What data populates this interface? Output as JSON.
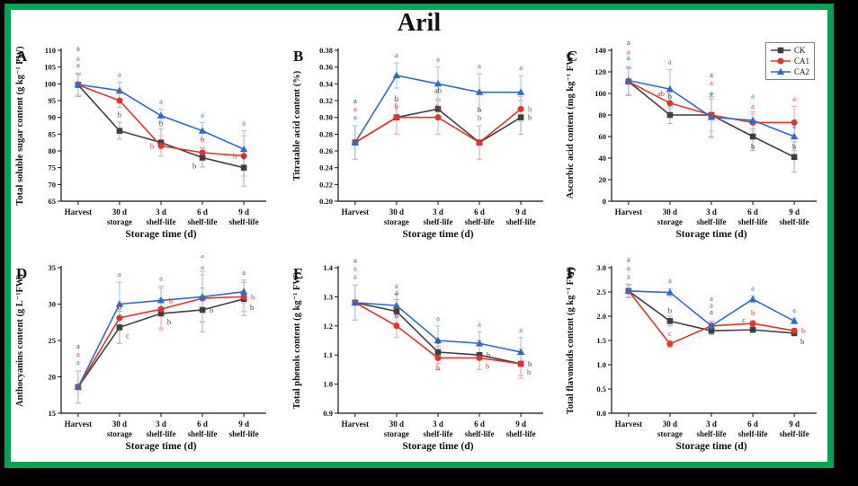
{
  "figure": {
    "title": "Aril",
    "frame_color": "#00a551",
    "background": "#ffffff",
    "outer_background": "#000000"
  },
  "legend": {
    "position": "top-right",
    "items": [
      {
        "label": "CK",
        "marker": "square",
        "color": "#3f3f3f"
      },
      {
        "label": "CA1",
        "marker": "circle",
        "color": "#e6332a"
      },
      {
        "label": "CA2",
        "marker": "triangle",
        "color": "#2e6bc8"
      }
    ]
  },
  "chart_data": [
    {
      "panel": "A",
      "type": "line",
      "ylabel": "Total soluble sugar content (g kg⁻¹ FW)",
      "xlabel": "Storage time (d)",
      "categories": [
        "Harvest",
        "30 d|storage",
        "3 d|shelf-life",
        "6 d|shelf-life",
        "9 d|shelf-life"
      ],
      "ylim": [
        65,
        110
      ],
      "ystep": 5,
      "ydecimals": 0,
      "grid": false,
      "series": [
        {
          "name": "CK",
          "marker": "square",
          "color": "#3f3f3f",
          "err_color": "#b3b3b3",
          "values": [
            99.7,
            86.0,
            82.5,
            78.0,
            75.0
          ],
          "errors": [
            3.5,
            2.5,
            4.0,
            2.8,
            5.5
          ]
        },
        {
          "name": "CA1",
          "marker": "circle",
          "color": "#e6332a",
          "err_color": "#f5aeab",
          "values": [
            99.7,
            95.0,
            81.5,
            79.5,
            78.5
          ],
          "errors": [
            3.0,
            2.0,
            3.0,
            1.5,
            6.0
          ]
        },
        {
          "name": "CA2",
          "marker": "triangle",
          "color": "#2e6bc8",
          "err_color": "#a9c4e9",
          "values": [
            99.8,
            98.0,
            90.5,
            86.0,
            80.5
          ],
          "errors": [
            3.2,
            2.5,
            2.0,
            2.5,
            5.5
          ]
        }
      ],
      "letters": [
        [
          0,
          0,
          "a",
          "s2"
        ],
        [
          1,
          0,
          "a",
          "s1"
        ],
        [
          2,
          0,
          "a",
          "s0"
        ],
        [
          0,
          1,
          "b",
          "a"
        ],
        [
          1,
          1,
          "a",
          "ap"
        ],
        [
          2,
          1,
          "a",
          "a"
        ],
        [
          0,
          2,
          "b",
          "ap2"
        ],
        [
          1,
          2,
          "b",
          "l"
        ],
        [
          2,
          2,
          "a",
          "a"
        ],
        [
          0,
          3,
          "b",
          "bl"
        ],
        [
          1,
          3,
          "b",
          "a"
        ],
        [
          2,
          3,
          "a",
          "a"
        ],
        [
          0,
          4,
          "c",
          "ap"
        ],
        [
          1,
          4,
          "b",
          "l"
        ],
        [
          2,
          4,
          "a",
          "a"
        ]
      ]
    },
    {
      "panel": "B",
      "type": "line",
      "ylabel": "Titratable acid content (%)",
      "xlabel": "Storage time (d)",
      "categories": [
        "Harvest",
        "30 d|storage",
        "3 d|shelf-life",
        "6 d|shelf-life",
        "9 d|shelf-life"
      ],
      "ylim": [
        0.2,
        0.38
      ],
      "ystep": 0.02,
      "ydecimals": 2,
      "grid": false,
      "series": [
        {
          "name": "CK",
          "marker": "square",
          "color": "#3f3f3f",
          "err_color": "#b3b3b3",
          "values": [
            0.27,
            0.3,
            0.31,
            0.27,
            0.3
          ],
          "errors": [
            0.02,
            0.02,
            0.012,
            0.02,
            0.02
          ]
        },
        {
          "name": "CA1",
          "marker": "circle",
          "color": "#e6332a",
          "err_color": "#f5aeab",
          "values": [
            0.27,
            0.3,
            0.3,
            0.27,
            0.31
          ],
          "errors": [
            0.02,
            0.02,
            0.02,
            0.02,
            0.015
          ]
        },
        {
          "name": "CA2",
          "marker": "triangle",
          "color": "#2e6bc8",
          "err_color": "#a9c4e9",
          "values": [
            0.27,
            0.35,
            0.34,
            0.33,
            0.33
          ],
          "errors": [
            0.02,
            0.015,
            0.02,
            0.022,
            0.02
          ]
        }
      ],
      "letters": [
        [
          0,
          0,
          "a",
          "s2"
        ],
        [
          1,
          0,
          "a",
          "s1"
        ],
        [
          2,
          0,
          "a",
          "s0"
        ],
        [
          0,
          1,
          "b",
          "ap2"
        ],
        [
          1,
          1,
          "b",
          "ap"
        ],
        [
          2,
          1,
          "a",
          "a"
        ],
        [
          0,
          2,
          "ab",
          "ap2"
        ],
        [
          1,
          2,
          "b",
          "ap"
        ],
        [
          2,
          2,
          "a",
          "a"
        ],
        [
          0,
          3,
          "b",
          "a2"
        ],
        [
          1,
          3,
          "b",
          "a"
        ],
        [
          2,
          3,
          "a",
          "a"
        ],
        [
          0,
          4,
          "b",
          "r"
        ],
        [
          1,
          4,
          "b",
          "r"
        ],
        [
          2,
          4,
          "a",
          "a"
        ]
      ]
    },
    {
      "panel": "C",
      "type": "line",
      "ylabel": "Ascorbic acid content (mg kg⁻¹ FW)",
      "xlabel": "Storage time (d)",
      "categories": [
        "Harvest",
        "30 d|storage",
        "3 d|shelf-life",
        "6 d|shelf-life",
        "9 d|shelf-life"
      ],
      "ylim": [
        0,
        140
      ],
      "ystep": 20,
      "ydecimals": 0,
      "grid": false,
      "series": [
        {
          "name": "CK",
          "marker": "square",
          "color": "#3f3f3f",
          "err_color": "#b3b3b3",
          "values": [
            111,
            80,
            80,
            60,
            41
          ],
          "errors": [
            13,
            8,
            20,
            13,
            14
          ]
        },
        {
          "name": "CA1",
          "marker": "circle",
          "color": "#e6332a",
          "err_color": "#f5aeab",
          "values": [
            111,
            91,
            80,
            73,
            73
          ],
          "errors": [
            12,
            10,
            15,
            8,
            15
          ]
        },
        {
          "name": "CA2",
          "marker": "triangle",
          "color": "#2e6bc8",
          "err_color": "#a9c4e9",
          "values": [
            112,
            104,
            78,
            75,
            60
          ],
          "errors": [
            13,
            18,
            19,
            8,
            13
          ]
        }
      ],
      "letters": [
        [
          0,
          0,
          "a",
          "s2"
        ],
        [
          1,
          0,
          "a",
          "s1"
        ],
        [
          2,
          0,
          "a",
          "s0"
        ],
        [
          0,
          1,
          "b",
          "ap2"
        ],
        [
          1,
          1,
          "ab",
          "al"
        ],
        [
          2,
          1,
          "a",
          "a"
        ],
        [
          0,
          2,
          "a",
          [
            0,
            -42
          ]
        ],
        [
          1,
          2,
          "a",
          [
            0,
            -33
          ]
        ],
        [
          2,
          2,
          "a",
          [
            0,
            -24
          ]
        ],
        [
          0,
          3,
          "b",
          "bp"
        ],
        [
          1,
          3,
          "a",
          "a"
        ],
        [
          2,
          3,
          "a",
          "a2"
        ],
        [
          0,
          4,
          "b",
          "ap"
        ],
        [
          1,
          4,
          "a",
          "a"
        ],
        [
          2,
          4,
          "a",
          "ap"
        ]
      ]
    },
    {
      "panel": "D",
      "type": "line",
      "ylabel": "Anthocyanins content (g L⁻¹FW)",
      "xlabel": "Storage time (d)",
      "categories": [
        "Harvest",
        "30 d|storage",
        "3 d|shelf-life",
        "6 d|shelf-life",
        "9 d|shelf-life"
      ],
      "ylim": [
        15,
        35
      ],
      "ystep": 5,
      "ydecimals": 0,
      "grid": false,
      "series": [
        {
          "name": "CK",
          "marker": "square",
          "color": "#3f3f3f",
          "err_color": "#b3b3b3",
          "values": [
            18.6,
            26.8,
            28.7,
            29.2,
            30.7
          ],
          "errors": [
            2.2,
            2.2,
            2.0,
            3.0,
            2.3
          ]
        },
        {
          "name": "CA1",
          "marker": "circle",
          "color": "#e6332a",
          "err_color": "#f5aeab",
          "values": [
            18.6,
            28.1,
            29.3,
            30.8,
            31.0
          ],
          "errors": [
            2.2,
            1.5,
            2.9,
            3.2,
            2.0
          ]
        },
        {
          "name": "CA2",
          "marker": "triangle",
          "color": "#2e6bc8",
          "err_color": "#a9c4e9",
          "values": [
            18.6,
            30.0,
            30.5,
            31.0,
            31.7
          ],
          "errors": [
            2.2,
            3.0,
            2.0,
            3.5,
            1.6
          ]
        }
      ],
      "letters": [
        [
          0,
          0,
          "a",
          "s2"
        ],
        [
          1,
          0,
          "a",
          "s1"
        ],
        [
          2,
          0,
          "a",
          "s0"
        ],
        [
          0,
          1,
          "c",
          "br"
        ],
        [
          1,
          1,
          "b",
          "ap"
        ],
        [
          2,
          1,
          "a",
          "a"
        ],
        [
          0,
          2,
          "b",
          "br"
        ],
        [
          1,
          2,
          "b",
          "ar"
        ],
        [
          2,
          2,
          "a",
          "a"
        ],
        [
          0,
          3,
          "b",
          "r"
        ],
        [
          1,
          3,
          "a",
          "a"
        ],
        [
          2,
          3,
          "a",
          "a2"
        ],
        [
          0,
          4,
          "b",
          "br"
        ],
        [
          1,
          4,
          "b",
          "r"
        ],
        [
          2,
          4,
          "a",
          "a"
        ]
      ]
    },
    {
      "panel": "E",
      "type": "line",
      "ylabel": "Total phenols content (g kg⁻¹ FW)",
      "xlabel": "Storage time (d)",
      "categories": [
        "Harvest",
        "30 d|storage",
        "3 d|shelf-life",
        "6 d|shelf-life",
        "9 d|shelf-life"
      ],
      "ylim": [
        0.9,
        1.4
      ],
      "ystep": 0.1,
      "ydecimals": 1,
      "grid": false,
      "series": [
        {
          "name": "CK",
          "marker": "square",
          "color": "#3f3f3f",
          "err_color": "#b3b3b3",
          "values": [
            1.28,
            1.25,
            1.11,
            1.1,
            1.07
          ],
          "errors": [
            0.06,
            0.04,
            0.04,
            0.05,
            0.04
          ]
        },
        {
          "name": "CA1",
          "marker": "circle",
          "color": "#e6332a",
          "err_color": "#f5aeab",
          "values": [
            1.28,
            1.2,
            1.09,
            1.09,
            1.07
          ],
          "errors": [
            0.06,
            0.04,
            0.04,
            0.04,
            0.05
          ]
        },
        {
          "name": "CA2",
          "marker": "triangle",
          "color": "#2e6bc8",
          "err_color": "#a9c4e9",
          "values": [
            1.28,
            1.27,
            1.15,
            1.14,
            1.11
          ],
          "errors": [
            0.06,
            0.04,
            0.05,
            0.04,
            0.05
          ]
        }
      ],
      "letters": [
        [
          0,
          0,
          "a",
          "s2"
        ],
        [
          1,
          0,
          "a",
          "s1"
        ],
        [
          2,
          0,
          "a",
          "s0"
        ],
        [
          0,
          1,
          "a",
          "ap2"
        ],
        [
          1,
          1,
          "b",
          "ap"
        ],
        [
          2,
          1,
          "a",
          "a"
        ],
        [
          0,
          2,
          "b",
          "ap"
        ],
        [
          1,
          2,
          "b",
          "bp"
        ],
        [
          2,
          2,
          "a",
          "a"
        ],
        [
          0,
          3,
          "b",
          "r"
        ],
        [
          1,
          3,
          "b",
          "br"
        ],
        [
          2,
          3,
          "a",
          "a"
        ],
        [
          0,
          4,
          "b",
          "r"
        ],
        [
          1,
          4,
          "b",
          "br"
        ],
        [
          2,
          4,
          "a",
          "a"
        ]
      ]
    },
    {
      "panel": "F",
      "type": "line",
      "ylabel": "Total flavonoids content (g kg⁻¹ FW)",
      "xlabel": "Storage time (d)",
      "categories": [
        "Harvest",
        "30 d|storage",
        "3 d|shelf-life",
        "6 d|shelf-life",
        "9 d|shelf-life"
      ],
      "ylim": [
        0.0,
        3.0
      ],
      "ystep": 0.5,
      "ydecimals": 1,
      "grid": false,
      "series": [
        {
          "name": "CK",
          "marker": "square",
          "color": "#3f3f3f",
          "err_color": "#b3b3b3",
          "values": [
            2.52,
            1.9,
            1.7,
            1.72,
            1.65
          ],
          "errors": [
            0.14,
            0.1,
            0.08,
            0.04,
            0.05
          ]
        },
        {
          "name": "CA1",
          "marker": "circle",
          "color": "#e6332a",
          "err_color": "#f5aeab",
          "values": [
            2.52,
            1.43,
            1.8,
            1.85,
            1.7
          ],
          "errors": [
            0.13,
            0.07,
            0.1,
            0.06,
            0.05
          ]
        },
        {
          "name": "CA2",
          "marker": "triangle",
          "color": "#2e6bc8",
          "err_color": "#a9c4e9",
          "values": [
            2.52,
            2.49,
            1.8,
            2.35,
            1.9
          ],
          "errors": [
            0.12,
            0.08,
            0.07,
            0.07,
            0.06
          ]
        }
      ],
      "letters": [
        [
          0,
          0,
          "a",
          "s2"
        ],
        [
          1,
          0,
          "a",
          "s1"
        ],
        [
          2,
          0,
          "a",
          "s0"
        ],
        [
          0,
          1,
          "b",
          "ap"
        ],
        [
          1,
          1,
          "c",
          "ap"
        ],
        [
          2,
          1,
          "a",
          "a"
        ],
        [
          0,
          2,
          "a",
          "ap2"
        ],
        [
          1,
          2,
          "a",
          "a2"
        ],
        [
          2,
          2,
          "a",
          "a3"
        ],
        [
          0,
          3,
          "c",
          "al"
        ],
        [
          1,
          3,
          "b",
          "ap"
        ],
        [
          2,
          3,
          "a",
          "a"
        ],
        [
          0,
          4,
          "b",
          "br"
        ],
        [
          1,
          4,
          "b",
          "r"
        ],
        [
          2,
          4,
          "a",
          "a"
        ]
      ]
    }
  ]
}
